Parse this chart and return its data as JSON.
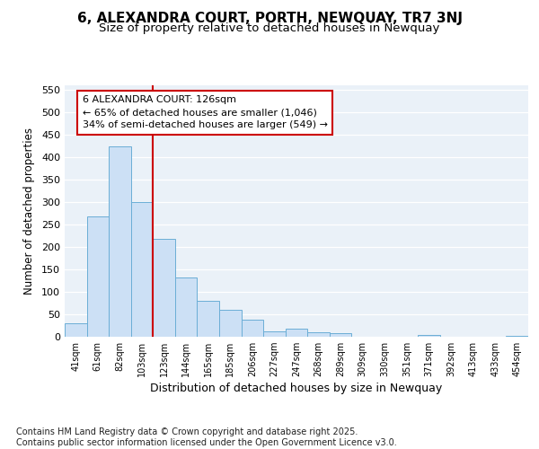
{
  "title": "6, ALEXANDRA COURT, PORTH, NEWQUAY, TR7 3NJ",
  "subtitle": "Size of property relative to detached houses in Newquay",
  "xlabel": "Distribution of detached houses by size in Newquay",
  "ylabel": "Number of detached properties",
  "bar_color": "#cce0f5",
  "bar_edge_color": "#6baed6",
  "background_color": "#eaf1f8",
  "grid_color": "#ffffff",
  "fig_background": "#ffffff",
  "categories": [
    "41sqm",
    "61sqm",
    "82sqm",
    "103sqm",
    "123sqm",
    "144sqm",
    "165sqm",
    "185sqm",
    "206sqm",
    "227sqm",
    "247sqm",
    "268sqm",
    "289sqm",
    "309sqm",
    "330sqm",
    "351sqm",
    "371sqm",
    "392sqm",
    "413sqm",
    "433sqm",
    "454sqm"
  ],
  "values": [
    30,
    268,
    425,
    300,
    218,
    133,
    80,
    60,
    38,
    12,
    18,
    10,
    8,
    0,
    0,
    0,
    5,
    0,
    0,
    0,
    2
  ],
  "ylim": [
    0,
    560
  ],
  "yticks": [
    0,
    50,
    100,
    150,
    200,
    250,
    300,
    350,
    400,
    450,
    500,
    550
  ],
  "property_line_bin": 4,
  "annotation_line1": "6 ALEXANDRA COURT: 126sqm",
  "annotation_line2": "← 65% of detached houses are smaller (1,046)",
  "annotation_line3": "34% of semi-detached houses are larger (549) →",
  "annotation_box_facecolor": "#ffffff",
  "annotation_box_edgecolor": "#cc0000",
  "red_line_color": "#cc0000",
  "footnote_line1": "Contains HM Land Registry data © Crown copyright and database right 2025.",
  "footnote_line2": "Contains public sector information licensed under the Open Government Licence v3.0."
}
